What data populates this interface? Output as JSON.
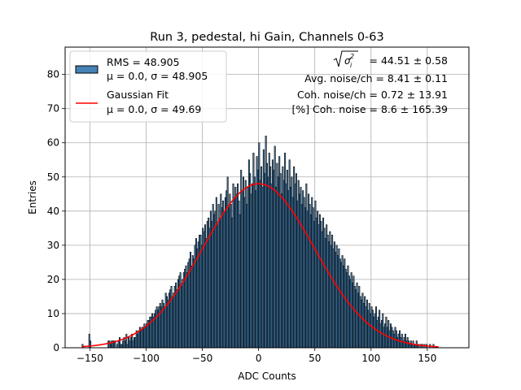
{
  "chart_data": {
    "type": "bar",
    "title": "Run 3, pedestal, hi Gain, Channels 0-63",
    "xlabel": "ADC Counts",
    "ylabel": "Entries",
    "xlim": [
      -172,
      187
    ],
    "ylim": [
      0,
      88
    ],
    "xticks": [
      -150,
      -100,
      -50,
      0,
      50,
      100,
      150
    ],
    "yticks": [
      0,
      10,
      20,
      30,
      40,
      50,
      60,
      70,
      80
    ],
    "grid": true,
    "legend_position": "top-left",
    "bin_start": -157,
    "bin_width": 1,
    "values": [
      1,
      0,
      0,
      0,
      0,
      0,
      4,
      2,
      0,
      0,
      0,
      0,
      0,
      0,
      0,
      0,
      0,
      0,
      0,
      0,
      0,
      0,
      0,
      2,
      2,
      1,
      2,
      2,
      2,
      2,
      0,
      1,
      2,
      3,
      1,
      1,
      2,
      3,
      2,
      4,
      1,
      3,
      2,
      3,
      4,
      2,
      3,
      3,
      5,
      4,
      5,
      6,
      5,
      6,
      6,
      7,
      6,
      7,
      8,
      8,
      9,
      9,
      10,
      9,
      10,
      11,
      12,
      11,
      12,
      13,
      12,
      14,
      13,
      12,
      16,
      15,
      14,
      16,
      17,
      18,
      15,
      16,
      18,
      19,
      17,
      20,
      21,
      22,
      18,
      20,
      22,
      23,
      24,
      22,
      25,
      26,
      28,
      24,
      27,
      26,
      30,
      32,
      29,
      31,
      33,
      33,
      30,
      35,
      34,
      36,
      32,
      37,
      38,
      35,
      40,
      37,
      42,
      39,
      40,
      44,
      36,
      42,
      38,
      45,
      41,
      43,
      40,
      44,
      46,
      50,
      41,
      45,
      42,
      38,
      48,
      44,
      47,
      45,
      48,
      43,
      39,
      52,
      46,
      50,
      44,
      49,
      42,
      47,
      55,
      51,
      45,
      48,
      57,
      50,
      46,
      56,
      52,
      60,
      49,
      53,
      47,
      58,
      51,
      62,
      54,
      50,
      57,
      53,
      48,
      55,
      52,
      59,
      47,
      54,
      50,
      56,
      51,
      45,
      53,
      49,
      57,
      48,
      52,
      46,
      55,
      47,
      50,
      44,
      53,
      48,
      51,
      43,
      49,
      45,
      47,
      42,
      46,
      44,
      41,
      48,
      40,
      45,
      42,
      39,
      44,
      41,
      37,
      43,
      38,
      40,
      36,
      39,
      37,
      34,
      38,
      35,
      32,
      36,
      33,
      31,
      34,
      30,
      33,
      29,
      31,
      28,
      30,
      27,
      29,
      26,
      25,
      27,
      24,
      26,
      23,
      22,
      24,
      21,
      20,
      22,
      19,
      21,
      18,
      17,
      19,
      16,
      18,
      15,
      14,
      16,
      13,
      15,
      12,
      14,
      11,
      13,
      10,
      12,
      11,
      9,
      10,
      12,
      8,
      9,
      11,
      7,
      8,
      10,
      6,
      7,
      9,
      6,
      8,
      5,
      7,
      6,
      5,
      4,
      6,
      5,
      3,
      4,
      5,
      3,
      4,
      2,
      3,
      4,
      2,
      3,
      2,
      1,
      2,
      1,
      2,
      1,
      1,
      2,
      1,
      1,
      0,
      1,
      1,
      0,
      1,
      0,
      1,
      0,
      0,
      1,
      0,
      0,
      1
    ],
    "series": [
      {
        "name": "RMS = 48.905",
        "detail": "μ = 0.0, σ = 48.905",
        "kind": "histogram",
        "color": "#4682b4",
        "edge_color": "#000000"
      },
      {
        "name": "Gaussian Fit",
        "detail": "μ = 0.0, σ = 49.69",
        "kind": "line",
        "color": "#ff0000",
        "mu": 0.0,
        "sigma": 49.69,
        "amplitude": 48,
        "x_range": [
          -157,
          160
        ]
      }
    ],
    "annotations": [
      {
        "text": " = 44.51 ± 0.58",
        "prefix_formula": "√σᵢ²"
      },
      {
        "text": "Avg. noise/ch = 8.41 ± 0.11"
      },
      {
        "text": "Coh. noise/ch = 0.72 ± 13.91"
      },
      {
        "text": "[%] Coh. noise = 8.6 ± 165.39"
      }
    ]
  }
}
